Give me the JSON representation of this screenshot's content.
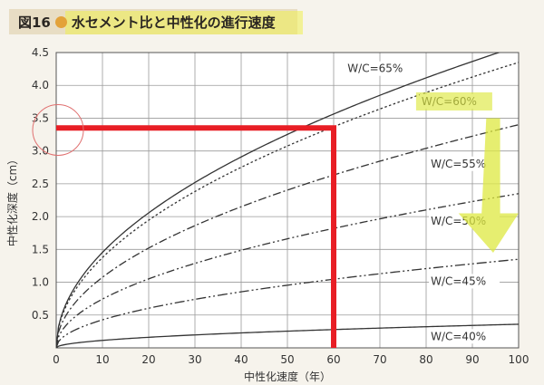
{
  "header": {
    "fig_number": "図16",
    "title": "水セメント比と中性化の進行速度"
  },
  "chart_data": {
    "type": "line",
    "title": "水セメント比と中性化の進行速度",
    "xlabel": "中性化速度（年）",
    "ylabel": "中性化深度（cm）",
    "xlim": [
      0,
      100
    ],
    "ylim": [
      0,
      4.5
    ],
    "x_ticks": [
      0,
      10,
      20,
      30,
      40,
      50,
      60,
      70,
      80,
      90,
      100
    ],
    "y_ticks": [
      "0.5",
      "1.0",
      "1.5",
      "2.0",
      "2.5",
      "3.0",
      "3.5",
      "4.0",
      "4.5"
    ],
    "grid": true,
    "series": [
      {
        "name": "W/C=65%",
        "style": "solid",
        "coef": 0.46,
        "label_at": [
          63,
          4.2
        ]
      },
      {
        "name": "W/C=60%",
        "style": "dotted",
        "coef": 0.435,
        "label_at": [
          79,
          3.7
        ]
      },
      {
        "name": "W/C=55%",
        "style": "dashdot",
        "coef": 0.34,
        "label_at": [
          81,
          2.75
        ]
      },
      {
        "name": "W/C=50%",
        "style": "dashdotdot",
        "coef": 0.235,
        "label_at": [
          81,
          1.88
        ]
      },
      {
        "name": "W/C=45%",
        "style": "dashdotdot2",
        "coef": 0.135,
        "label_at": [
          81,
          0.96
        ]
      },
      {
        "name": "W/C=40%",
        "style": "solid",
        "coef": 0.036,
        "label_at": [
          81,
          0.12
        ]
      }
    ],
    "annotations": {
      "highlight_value": [
        60,
        3.35
      ],
      "arrow_color": "#dde840",
      "line_color": "#e81e25"
    }
  }
}
